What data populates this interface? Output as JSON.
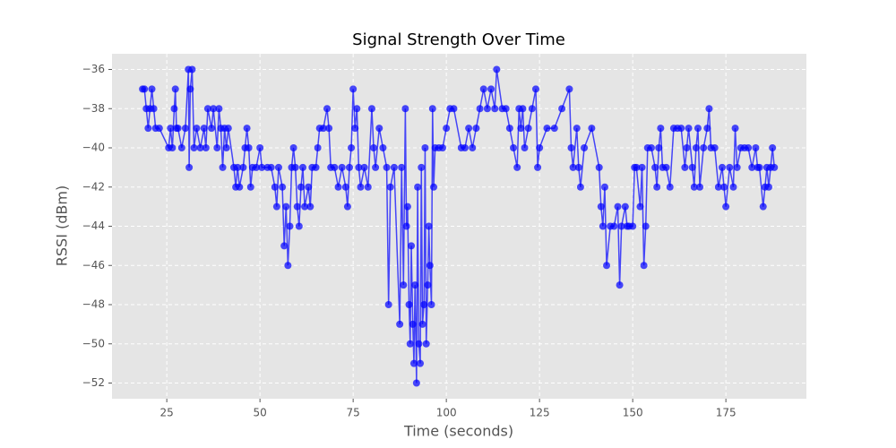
{
  "chart_data": {
    "type": "line",
    "title": "Signal Strength Over Time",
    "x_label": "Time (seconds)",
    "y_label": "RSSI (dBm)",
    "color": "#0000ff",
    "grid": true,
    "xlim": [
      10.3,
      196.6
    ],
    "xticks": [
      25,
      50,
      75,
      100,
      125,
      150,
      175
    ],
    "ylim": [
      -52.8,
      -35.2
    ],
    "yticks": [
      {
        "value": -52,
        "label": "−52"
      },
      {
        "value": -50,
        "label": "−50"
      },
      {
        "value": -48,
        "label": "−48"
      },
      {
        "value": -46,
        "label": "−46"
      },
      {
        "value": -44,
        "label": "−44"
      },
      {
        "value": -42,
        "label": "−42"
      },
      {
        "value": -40,
        "label": "−40"
      },
      {
        "value": -38,
        "label": "−38"
      },
      {
        "value": -36,
        "label": "−36"
      }
    ],
    "x": [
      18.5,
      19,
      19.5,
      20,
      20.5,
      21,
      21.5,
      22,
      23,
      25.5,
      26,
      26.5,
      27,
      27.3,
      27.6,
      28,
      29,
      30,
      30.8,
      31,
      31.3,
      31.8,
      32.3,
      33,
      34,
      35,
      35.5,
      36,
      37,
      37.5,
      38.5,
      39,
      39.5,
      40,
      40.5,
      41,
      41.5,
      43,
      43.5,
      44,
      44.5,
      45.5,
      46,
      46.5,
      47,
      47.5,
      48,
      49,
      50,
      50.5,
      52,
      53,
      54,
      54.5,
      55,
      56,
      56.5,
      57,
      57.5,
      58,
      58.5,
      59,
      59.5,
      60,
      60.5,
      61,
      61.5,
      62,
      63,
      63.5,
      64,
      65,
      65.5,
      66,
      67,
      68,
      68.5,
      69,
      70,
      71,
      72,
      73,
      73.5,
      74,
      74.5,
      75,
      75.5,
      76,
      76.5,
      77,
      78,
      79,
      80,
      80.5,
      81,
      82,
      83,
      84,
      84.5,
      85,
      86,
      87.5,
      88,
      88.5,
      89,
      89.3,
      89.6,
      90,
      90.3,
      90.6,
      91,
      91.3,
      91.6,
      92,
      92.3,
      92.6,
      93,
      93.3,
      93.6,
      94,
      94.3,
      94.6,
      95,
      95.3,
      95.6,
      96,
      96.3,
      96.6,
      97,
      98,
      99,
      100,
      101,
      102,
      104,
      105,
      106,
      107,
      108,
      109,
      110,
      111,
      112,
      113,
      113.5,
      115,
      116,
      117,
      118,
      119,
      119.5,
      120,
      120.5,
      121,
      122,
      123,
      124,
      124.5,
      125,
      127,
      129,
      131,
      133,
      133.5,
      134,
      135,
      135.5,
      136,
      137,
      139,
      141,
      141.5,
      142,
      142.5,
      143,
      144,
      145,
      146,
      146.5,
      147,
      148,
      148.5,
      149,
      150,
      150.5,
      151,
      152,
      152.5,
      153,
      153.5,
      154,
      155,
      156,
      156.5,
      157,
      157.5,
      158,
      159,
      160,
      161,
      162,
      163,
      164,
      164.5,
      165,
      166,
      166.5,
      167,
      167.5,
      168,
      169,
      170,
      170.5,
      171,
      172,
      173,
      174,
      174.5,
      175,
      176,
      177,
      177.5,
      178,
      179,
      180,
      181,
      182,
      183,
      183.5,
      184,
      185,
      185.5,
      186,
      186.5,
      187,
      187.5,
      188
    ],
    "values": [
      -37,
      -37,
      -38,
      -39,
      -38,
      -37,
      -38,
      -39,
      -39,
      -40,
      -39,
      -40,
      -38,
      -37,
      -39,
      -39,
      -40,
      -39,
      -36,
      -41,
      -37,
      -36,
      -40,
      -39,
      -40,
      -39,
      -40,
      -38,
      -39,
      -38,
      -40,
      -38,
      -39,
      -41,
      -39,
      -40,
      -39,
      -41,
      -42,
      -41,
      -42,
      -41,
      -40,
      -39,
      -40,
      -42,
      -41,
      -41,
      -40,
      -41,
      -41,
      -41,
      -42,
      -43,
      -41,
      -42,
      -45,
      -43,
      -46,
      -44,
      -41,
      -40,
      -41,
      -43,
      -44,
      -42,
      -41,
      -43,
      -42,
      -43,
      -41,
      -41,
      -40,
      -39,
      -39,
      -38,
      -39,
      -41,
      -41,
      -42,
      -41,
      -42,
      -43,
      -41,
      -40,
      -37,
      -39,
      -38,
      -41,
      -42,
      -41,
      -42,
      -38,
      -40,
      -41,
      -39,
      -40,
      -41,
      -48,
      -42,
      -41,
      -49,
      -41,
      -47,
      -38,
      -44,
      -43,
      -48,
      -50,
      -45,
      -49,
      -51,
      -47,
      -52,
      -42,
      -50,
      -51,
      -41,
      -49,
      -48,
      -40,
      -50,
      -47,
      -44,
      -46,
      -48,
      -38,
      -42,
      -40,
      -40,
      -40,
      -39,
      -38,
      -38,
      -40,
      -40,
      -39,
      -40,
      -39,
      -38,
      -37,
      -38,
      -37,
      -38,
      -36,
      -38,
      -38,
      -39,
      -40,
      -41,
      -38,
      -39,
      -38,
      -40,
      -39,
      -38,
      -37,
      -41,
      -40,
      -39,
      -39,
      -38,
      -37,
      -40,
      -41,
      -39,
      -41,
      -42,
      -40,
      -39,
      -41,
      -43,
      -44,
      -42,
      -46,
      -44,
      -44,
      -43,
      -47,
      -44,
      -43,
      -44,
      -44,
      -44,
      -41,
      -41,
      -43,
      -41,
      -46,
      -44,
      -40,
      -40,
      -41,
      -42,
      -40,
      -39,
      -41,
      -41,
      -42,
      -39,
      -39,
      -39,
      -41,
      -40,
      -39,
      -41,
      -42,
      -40,
      -39,
      -42,
      -40,
      -39,
      -38,
      -40,
      -40,
      -42,
      -41,
      -42,
      -43,
      -41,
      -42,
      -39,
      -41,
      -40,
      -40,
      -40,
      -41,
      -40,
      -41,
      -41,
      -43,
      -42,
      -41,
      -42,
      -41,
      -40,
      -41
    ]
  }
}
